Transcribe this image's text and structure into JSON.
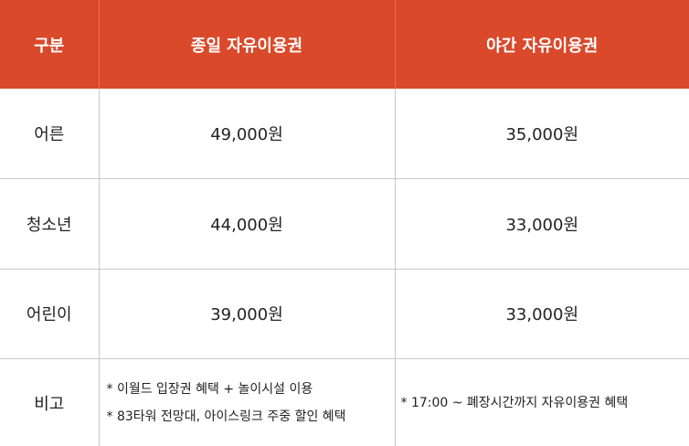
{
  "colors": {
    "header_bg": "#d9492a",
    "header_text": "#ffffff",
    "border": "#c8c8c8"
  },
  "header": {
    "col_category": "구분",
    "col_day_pass": "종일 자유이용권",
    "col_night_pass": "야간 자유이용권"
  },
  "rows": [
    {
      "category": "어른",
      "day_price": "49,000원",
      "night_price": "35,000원"
    },
    {
      "category": "청소년",
      "day_price": "44,000원",
      "night_price": "33,000원"
    },
    {
      "category": "어린이",
      "day_price": "39,000원",
      "night_price": "33,000원"
    }
  ],
  "notes": {
    "label": "비고",
    "day_notes": [
      "* 이월드 입장권 혜택 + 놀이시설 이용",
      "* 83타워 전망대, 아이스링크 주중 할인 혜택"
    ],
    "night_notes": [
      "* 17:00 ~ 폐장시간까지 자유이용권 혜택"
    ]
  }
}
